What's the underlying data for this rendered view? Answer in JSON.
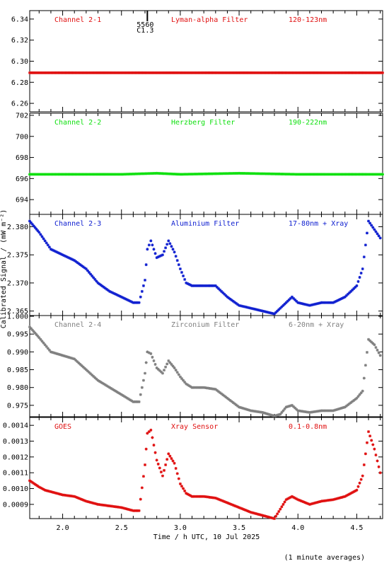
{
  "chart_data": {
    "type": "scatter",
    "xlabel": "Time / h UTC, 10 Jul 2025",
    "ylabel": "Calibrated Signal / (mW m⁻²)",
    "xlim": [
      1.72,
      4.72
    ],
    "xticks": [
      "2.0",
      "2.5",
      "3.0",
      "3.5",
      "4.0",
      "4.5"
    ],
    "footnote": "(1 minute averages)",
    "marker_annotation": {
      "x": 2.72,
      "label_top": "5560",
      "label_bottom": "C1.3"
    },
    "panels": [
      {
        "channel": "Channel 2-1",
        "filter": "Lyman-alpha Filter",
        "band": "120-123nm",
        "color": "#e01010",
        "ylim": [
          6.252,
          6.348
        ],
        "yticks": [
          "6.26",
          "6.28",
          "6.30",
          "6.32",
          "6.34"
        ],
        "series": {
          "name": "Channel 2-1",
          "x": [
            1.72,
            2.0,
            2.5,
            3.0,
            3.5,
            4.0,
            4.5,
            4.72
          ],
          "y": [
            6.289,
            6.289,
            6.289,
            6.289,
            6.289,
            6.289,
            6.289,
            6.289
          ]
        }
      },
      {
        "channel": "Channel 2-2",
        "filter": "Herzberg Filter",
        "band": "190-222nm",
        "color": "#10e010",
        "ylim": [
          692.6,
          702.2
        ],
        "yticks": [
          "694",
          "696",
          "698",
          "700",
          "702"
        ],
        "series": {
          "name": "Channel 2-2",
          "x": [
            1.72,
            2.0,
            2.5,
            2.8,
            3.0,
            3.5,
            4.0,
            4.5,
            4.72
          ],
          "y": [
            696.4,
            696.4,
            696.4,
            696.5,
            696.4,
            696.5,
            696.4,
            696.4,
            696.4
          ]
        }
      },
      {
        "channel": "Channel 2-3",
        "filter": "Aluminium Filter",
        "band": "17-80nm + Xray",
        "color": "#1020d0",
        "ylim": [
          2.3642,
          2.3822
        ],
        "yticks": [
          "2.365",
          "2.370",
          "2.375",
          "2.380"
        ],
        "series": {
          "name": "Channel 2-3",
          "x": [
            1.72,
            1.8,
            1.85,
            1.9,
            1.95,
            2.0,
            2.1,
            2.2,
            2.3,
            2.4,
            2.5,
            2.6,
            2.65,
            2.7,
            2.72,
            2.75,
            2.8,
            2.85,
            2.9,
            2.95,
            3.0,
            3.05,
            3.1,
            3.2,
            3.3,
            3.4,
            3.5,
            3.6,
            3.7,
            3.8,
            3.85,
            3.9,
            3.95,
            4.0,
            4.1,
            4.2,
            4.3,
            4.4,
            4.5,
            4.55,
            4.6,
            4.65,
            4.7
          ],
          "y": [
            2.381,
            2.379,
            2.3775,
            2.376,
            2.3755,
            2.375,
            2.374,
            2.3725,
            2.37,
            2.3685,
            2.3675,
            2.3665,
            2.3665,
            2.3705,
            2.376,
            2.3775,
            2.3745,
            2.375,
            2.3775,
            2.3755,
            2.3725,
            2.37,
            2.3695,
            2.3695,
            2.3695,
            2.3675,
            2.366,
            2.3655,
            2.365,
            2.3645,
            2.3655,
            2.3665,
            2.3675,
            2.3665,
            2.366,
            2.3665,
            2.3665,
            2.3675,
            2.3695,
            2.3725,
            2.381,
            2.3795,
            2.378
          ]
        }
      },
      {
        "channel": "Channel 2-4",
        "filter": "Zirconium Filter",
        "band": "6-20nm + Xray",
        "color": "#808080",
        "ylim": [
          0.9718,
          1.0002
        ],
        "yticks": [
          "0.975",
          "0.980",
          "0.985",
          "0.990",
          "0.995",
          "1.000"
        ],
        "series": {
          "name": "Channel 2-4",
          "x": [
            1.72,
            1.8,
            1.85,
            1.9,
            1.95,
            2.0,
            2.1,
            2.2,
            2.3,
            2.4,
            2.5,
            2.6,
            2.65,
            2.7,
            2.72,
            2.75,
            2.8,
            2.85,
            2.9,
            2.95,
            3.0,
            3.05,
            3.1,
            3.2,
            3.3,
            3.4,
            3.5,
            3.6,
            3.7,
            3.8,
            3.85,
            3.9,
            3.95,
            4.0,
            4.1,
            4.2,
            4.3,
            4.4,
            4.5,
            4.55,
            4.6,
            4.65,
            4.7
          ],
          "y": [
            0.997,
            0.994,
            0.992,
            0.99,
            0.9895,
            0.989,
            0.988,
            0.985,
            0.982,
            0.98,
            0.978,
            0.976,
            0.976,
            0.984,
            0.99,
            0.9895,
            0.9855,
            0.984,
            0.9875,
            0.9855,
            0.983,
            0.981,
            0.98,
            0.98,
            0.9795,
            0.977,
            0.9745,
            0.9735,
            0.973,
            0.972,
            0.9725,
            0.9745,
            0.975,
            0.9735,
            0.973,
            0.9735,
            0.9735,
            0.9745,
            0.977,
            0.979,
            0.9935,
            0.992,
            0.989
          ]
        }
      },
      {
        "channel": "GOES",
        "filter": "Xray Sensor",
        "band": "0.1-0.8nm",
        "color": "#e01010",
        "ylim": [
          0.00081,
          0.00145
        ],
        "yticks": [
          "0.0009",
          "0.0010",
          "0.0011",
          "0.0012",
          "0.0013",
          "0.0014"
        ],
        "series": {
          "name": "GOES",
          "x": [
            1.72,
            1.8,
            1.85,
            1.9,
            1.95,
            2.0,
            2.1,
            2.2,
            2.3,
            2.4,
            2.5,
            2.6,
            2.65,
            2.7,
            2.72,
            2.75,
            2.8,
            2.85,
            2.9,
            2.95,
            3.0,
            3.05,
            3.1,
            3.2,
            3.3,
            3.4,
            3.5,
            3.6,
            3.7,
            3.8,
            3.85,
            3.9,
            3.95,
            4.0,
            4.1,
            4.2,
            4.3,
            4.4,
            4.5,
            4.55,
            4.6,
            4.65,
            4.7
          ],
          "y": [
            0.00105,
            0.00101,
            0.00099,
            0.00098,
            0.00097,
            0.00096,
            0.00095,
            0.00092,
            0.0009,
            0.00089,
            0.00088,
            0.00086,
            0.00086,
            0.00115,
            0.00135,
            0.00137,
            0.00118,
            0.00108,
            0.00122,
            0.00116,
            0.00103,
            0.00097,
            0.00095,
            0.00095,
            0.00094,
            0.00091,
            0.00088,
            0.00085,
            0.00083,
            0.00081,
            0.00087,
            0.00093,
            0.00095,
            0.00093,
            0.0009,
            0.00092,
            0.00093,
            0.00095,
            0.00099,
            0.00108,
            0.00136,
            0.00125,
            0.0011
          ]
        }
      }
    ]
  }
}
